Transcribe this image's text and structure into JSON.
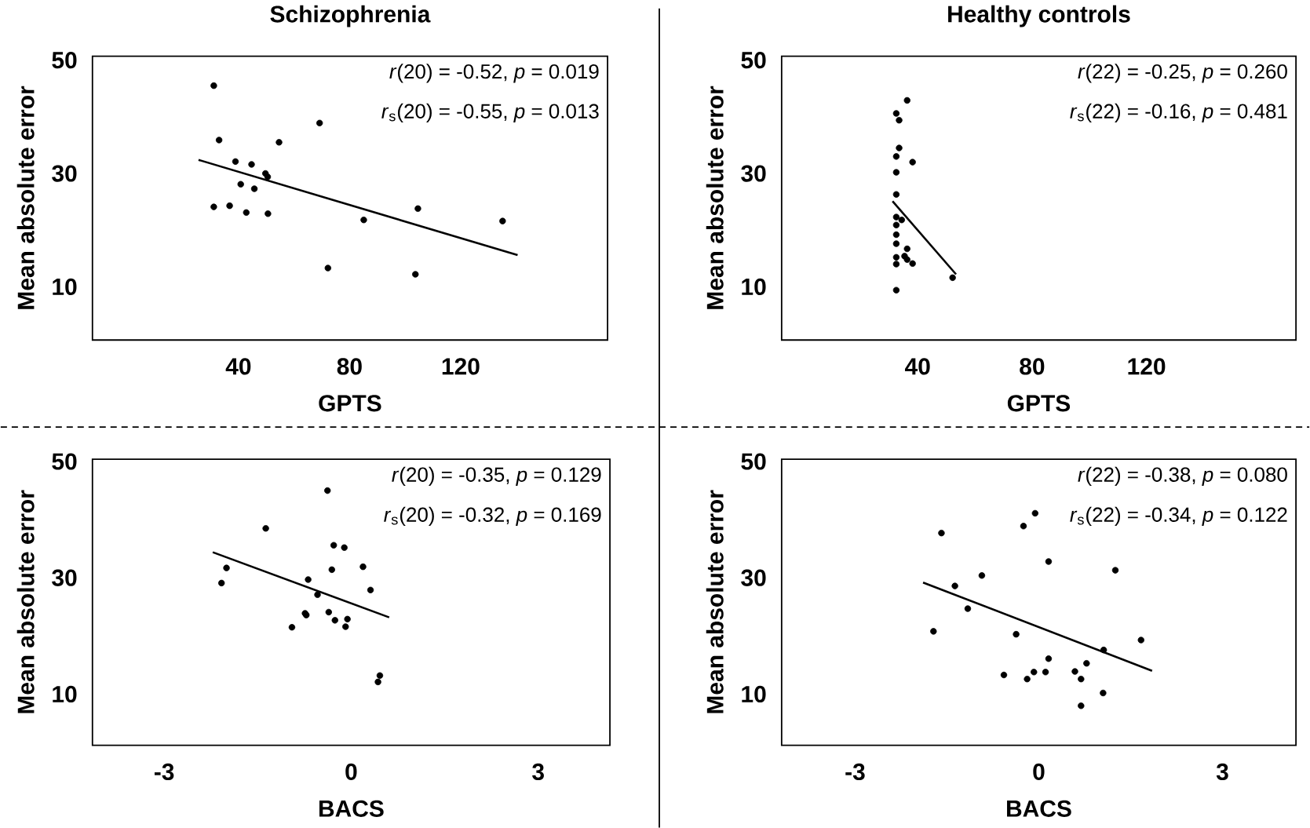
{
  "chart_data": [
    {
      "type": "scatter",
      "title": "Schizophrenia",
      "xlabel": "GPTS",
      "ylabel": "Mean absolute error",
      "xlim": [
        -12.6,
        172.9
      ],
      "ylim": [
        0.6,
        50.7
      ],
      "xticks": [
        40,
        80,
        120
      ],
      "yticks": [
        10,
        30,
        50
      ],
      "marker": "circle",
      "annotations": [
        "*r*(20) = -0.52, *p* = 0.019",
        "*r*$_{s}$(20) = -0.55, *p* = 0.013"
      ],
      "series": [
        {
          "color": "#000000",
          "x": [
            31.1,
            33.0,
            54.6,
            69.2,
            38.9,
            44.7,
            49.7,
            50.5,
            40.8,
            45.7,
            31.1,
            36.8,
            42.8,
            50.6,
            85.1,
            104.6,
            135.1,
            72.2,
            103.7
          ],
          "values": [
            45.5,
            35.9,
            35.5,
            38.9,
            32.1,
            31.6,
            30.0,
            29.4,
            28.1,
            27.3,
            24.1,
            24.3,
            23.1,
            22.9,
            21.8,
            23.8,
            21.6,
            13.3,
            12.2
          ]
        },
        {
          "type": "line",
          "marker": "none",
          "color": "#000000",
          "x": [
            25.6,
            140.5
          ],
          "values": [
            32.4,
            15.6
          ]
        }
      ]
    },
    {
      "type": "scatter",
      "title": "Healthy controls",
      "xlabel": "GPTS",
      "ylabel": "Mean absolute error",
      "xlim": [
        -7.6,
        172.3
      ],
      "ylim": [
        0.6,
        50.7
      ],
      "xticks": [
        40,
        80,
        120
      ],
      "yticks": [
        10,
        30,
        50
      ],
      "marker": "circle",
      "annotations": [
        "*r*(22) = -0.25, *p* = 0.260",
        "*r*$_{s}$(22) = -0.16, *p* = 0.481"
      ],
      "series": [
        {
          "color": "#000000",
          "x": [
            36.3,
            32.5,
            33.5,
            33.5,
            32.5,
            38.2,
            32.5,
            32.5,
            32.5,
            34.4,
            32.5,
            32.5,
            32.5,
            36.3,
            32.5,
            35.4,
            36.3,
            32.5,
            38.2,
            52.2,
            32.5
          ],
          "values": [
            42.9,
            40.6,
            39.4,
            34.5,
            33.0,
            32.0,
            30.2,
            26.3,
            22.3,
            21.8,
            20.9,
            19.2,
            17.6,
            16.7,
            15.2,
            15.4,
            14.8,
            14.0,
            14.1,
            11.6,
            9.4
          ]
        },
        {
          "type": "line",
          "marker": "none",
          "color": "#000000",
          "x": [
            31.2,
            53.4
          ],
          "values": [
            25.1,
            12.2
          ]
        }
      ]
    },
    {
      "type": "scatter",
      "xlabel": "BACS",
      "ylabel": "Mean absolute error",
      "xlim": [
        -4.15,
        4.15
      ],
      "ylim": [
        1.2,
        50.4
      ],
      "xticks": [
        -3,
        0,
        3
      ],
      "yticks": [
        10,
        30,
        50
      ],
      "marker": "circle",
      "annotations": [
        "*r*(20) = -0.35, *p* = 0.129",
        "*r*$_{s}$(20) = -0.32, *p* = 0.169"
      ],
      "series": [
        {
          "color": "#000000",
          "x": [
            -0.38,
            -1.37,
            -0.28,
            -0.11,
            -2.0,
            0.19,
            -0.31,
            -2.08,
            -0.69,
            0.31,
            -0.54,
            -0.74,
            -0.72,
            -0.36,
            -0.06,
            -0.26,
            -0.09,
            -0.95,
            0.46,
            0.43
          ],
          "values": [
            45.0,
            38.5,
            35.6,
            35.2,
            31.7,
            31.9,
            31.4,
            29.1,
            29.7,
            27.9,
            27.1,
            23.9,
            23.6,
            24.1,
            22.9,
            22.7,
            21.6,
            21.5,
            13.2,
            12.1
          ]
        },
        {
          "type": "line",
          "marker": "none",
          "color": "#000000",
          "x": [
            -2.22,
            0.61
          ],
          "values": [
            34.4,
            23.2
          ]
        }
      ]
    },
    {
      "type": "scatter",
      "xlabel": "BACS",
      "ylabel": "Mean absolute error",
      "xlim": [
        -4.2,
        4.2
      ],
      "ylim": [
        1.2,
        50.4
      ],
      "xticks": [
        -3,
        0,
        3
      ],
      "yticks": [
        10,
        30,
        50
      ],
      "marker": "circle",
      "annotations": [
        "*r*(22) = -0.38, *p* = 0.080",
        "*r*$_{s}$(22) = -0.34, *p* = 0.122"
      ],
      "series": [
        {
          "color": "#000000",
          "x": [
            -0.06,
            -0.25,
            -1.59,
            0.16,
            1.25,
            -0.93,
            -1.37,
            -1.16,
            -1.72,
            -0.37,
            1.67,
            1.06,
            0.16,
            0.78,
            -0.57,
            -0.08,
            0.11,
            0.59,
            -0.19,
            0.69,
            1.05,
            0.69
          ],
          "values": [
            41.1,
            38.9,
            37.7,
            32.8,
            31.3,
            30.4,
            28.6,
            24.7,
            20.8,
            20.3,
            19.3,
            17.6,
            16.1,
            15.3,
            13.3,
            13.8,
            13.8,
            13.9,
            12.6,
            12.6,
            10.2,
            8.0
          ]
        },
        {
          "type": "line",
          "marker": "none",
          "color": "#000000",
          "x": [
            -1.89,
            1.85
          ],
          "values": [
            29.2,
            14.0
          ]
        }
      ]
    }
  ]
}
